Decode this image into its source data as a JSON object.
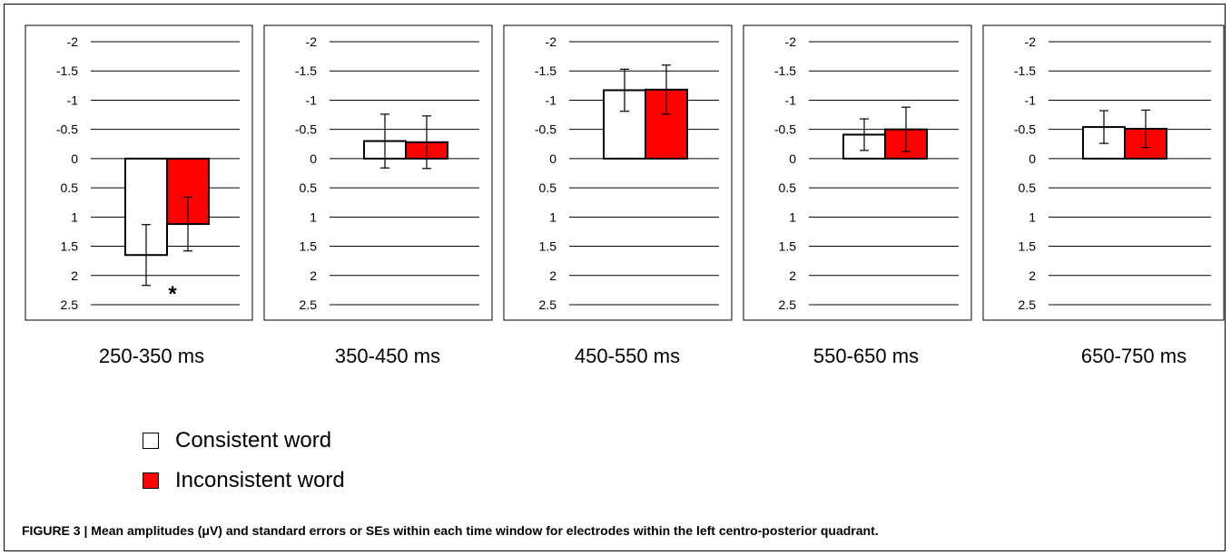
{
  "chart_data": {
    "type": "bar",
    "panels": [
      {
        "title": "250-350 ms",
        "values": [
          1.65,
          1.12
        ],
        "errors": [
          0.52,
          0.46
        ],
        "annotation": "*"
      },
      {
        "title": "350-450 ms",
        "values": [
          -0.3,
          -0.28
        ],
        "errors": [
          0.46,
          0.45
        ],
        "annotation": ""
      },
      {
        "title": "450-550 ms",
        "values": [
          -1.17,
          -1.18
        ],
        "errors": [
          0.36,
          0.42
        ],
        "annotation": ""
      },
      {
        "title": "550-650 ms",
        "values": [
          -0.41,
          -0.5
        ],
        "errors": [
          0.27,
          0.38
        ],
        "annotation": ""
      },
      {
        "title": "650-750 ms",
        "values": [
          -0.54,
          -0.51
        ],
        "errors": [
          0.28,
          0.32
        ],
        "annotation": ""
      }
    ],
    "series": [
      {
        "name": "Consistent word",
        "color": "#ffffff"
      },
      {
        "name": "Inconsistent word",
        "color": "#ff0000"
      }
    ],
    "y_axis": {
      "inverted": true,
      "ylim": [
        -2,
        2.5
      ],
      "ticks": [
        -2,
        -1.5,
        -1,
        -0.5,
        0,
        0.5,
        1,
        1.5,
        2,
        2.5
      ],
      "tick_labels": [
        "-2",
        "-1.5",
        "-1",
        "-0.5",
        "0",
        "0.5",
        "1",
        "1.5",
        "2",
        "2.5"
      ]
    },
    "grid": true
  },
  "caption": "FIGURE 3 | Mean amplitudes (μV) and standard errors or SEs within each time window for electrodes within the left centro-posterior quadrant."
}
